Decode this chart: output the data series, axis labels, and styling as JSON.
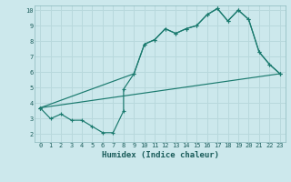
{
  "xlabel": "Humidex (Indice chaleur)",
  "bg_color": "#cce8ec",
  "grid_color": "#b8d8dc",
  "line_color": "#1a7a6e",
  "xlim": [
    -0.5,
    23.5
  ],
  "ylim": [
    1.5,
    10.3
  ],
  "yticks": [
    2,
    3,
    4,
    5,
    6,
    7,
    8,
    9,
    10
  ],
  "xticks": [
    0,
    1,
    2,
    3,
    4,
    5,
    6,
    7,
    8,
    9,
    10,
    11,
    12,
    13,
    14,
    15,
    16,
    17,
    18,
    19,
    20,
    21,
    22,
    23
  ],
  "series1_x": [
    0,
    1,
    2,
    3,
    4,
    5,
    6,
    7,
    8,
    8,
    9,
    10,
    11,
    12,
    13,
    14,
    15,
    16,
    17,
    18,
    19,
    20,
    21,
    22,
    23
  ],
  "series1_y": [
    3.7,
    3.0,
    3.3,
    2.9,
    2.9,
    2.5,
    2.1,
    2.1,
    3.5,
    4.9,
    5.9,
    7.8,
    8.1,
    8.8,
    8.5,
    8.8,
    9.0,
    9.7,
    10.1,
    9.3,
    10.0,
    9.4,
    7.3,
    6.5,
    5.9
  ],
  "series2_x": [
    0,
    9,
    10,
    11,
    12,
    13,
    14,
    15,
    16,
    17,
    18,
    19,
    20,
    21,
    22,
    23
  ],
  "series2_y": [
    3.7,
    5.9,
    7.8,
    8.1,
    8.8,
    8.5,
    8.8,
    9.0,
    9.7,
    10.1,
    9.3,
    10.0,
    9.4,
    7.3,
    6.5,
    5.9
  ],
  "series3_x": [
    0,
    23
  ],
  "series3_y": [
    3.7,
    5.9
  ]
}
